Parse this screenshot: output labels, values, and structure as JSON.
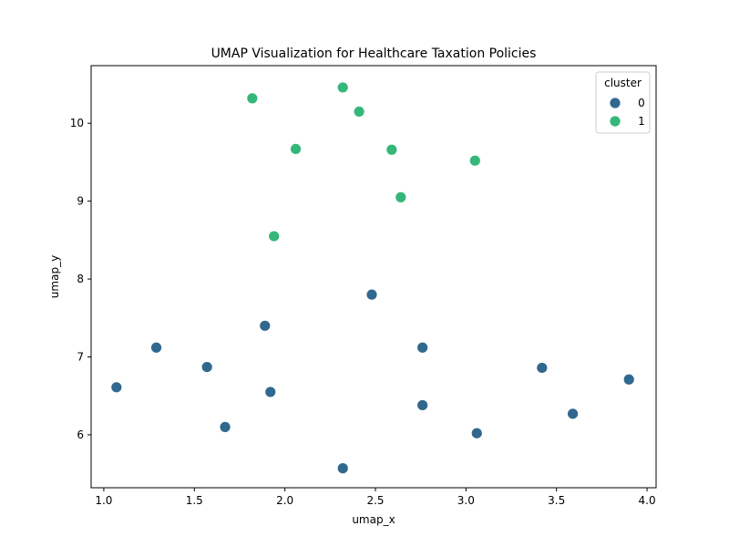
{
  "chart_data": {
    "type": "scatter",
    "title": "UMAP Visualization for Healthcare Taxation Policies",
    "xlabel": "umap_x",
    "ylabel": "umap_y",
    "xlim": [
      0.93,
      4.05
    ],
    "ylim": [
      5.32,
      10.74
    ],
    "xticks": [
      1.0,
      1.5,
      2.0,
      2.5,
      3.0,
      3.5,
      4.0
    ],
    "xtick_labels": [
      "1.0",
      "1.5",
      "2.0",
      "2.5",
      "3.0",
      "3.5",
      "4.0"
    ],
    "yticks": [
      6,
      7,
      8,
      9,
      10
    ],
    "ytick_labels": [
      "6",
      "7",
      "8",
      "9",
      "10"
    ],
    "grid": false,
    "legend": {
      "title": "cluster",
      "placement": "top-right",
      "entries": [
        {
          "label": "0",
          "color": "#31688e"
        },
        {
          "label": "1",
          "color": "#35b779"
        }
      ]
    },
    "series": [
      {
        "name": "0",
        "color": "#31688e",
        "points": [
          {
            "x": 1.07,
            "y": 6.61
          },
          {
            "x": 1.29,
            "y": 7.12
          },
          {
            "x": 1.57,
            "y": 6.87
          },
          {
            "x": 1.67,
            "y": 6.1
          },
          {
            "x": 1.89,
            "y": 7.4
          },
          {
            "x": 1.92,
            "y": 6.55
          },
          {
            "x": 2.32,
            "y": 5.57
          },
          {
            "x": 2.48,
            "y": 7.8
          },
          {
            "x": 2.76,
            "y": 7.12
          },
          {
            "x": 2.76,
            "y": 6.38
          },
          {
            "x": 3.06,
            "y": 6.02
          },
          {
            "x": 3.42,
            "y": 6.86
          },
          {
            "x": 3.59,
            "y": 6.27
          },
          {
            "x": 3.9,
            "y": 6.71
          }
        ]
      },
      {
        "name": "1",
        "color": "#35b779",
        "points": [
          {
            "x": 1.82,
            "y": 10.32
          },
          {
            "x": 2.32,
            "y": 10.46
          },
          {
            "x": 2.41,
            "y": 10.15
          },
          {
            "x": 2.06,
            "y": 9.67
          },
          {
            "x": 2.59,
            "y": 9.66
          },
          {
            "x": 3.05,
            "y": 9.52
          },
          {
            "x": 2.64,
            "y": 9.05
          },
          {
            "x": 1.94,
            "y": 8.55
          }
        ]
      }
    ]
  }
}
